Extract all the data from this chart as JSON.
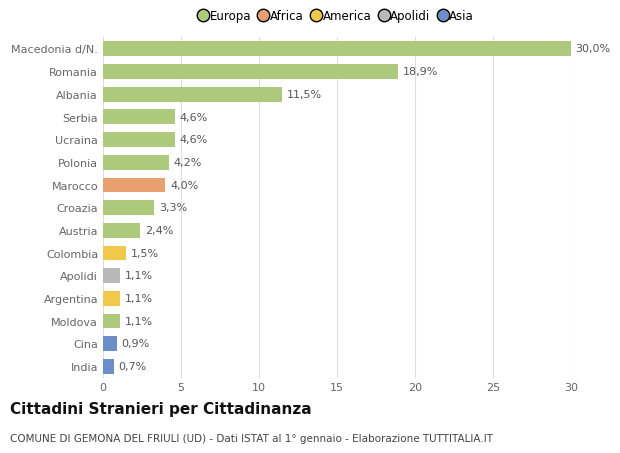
{
  "categories": [
    "Macedonia d/N.",
    "Romania",
    "Albania",
    "Serbia",
    "Ucraina",
    "Polonia",
    "Marocco",
    "Croazia",
    "Austria",
    "Colombia",
    "Apolidi",
    "Argentina",
    "Moldova",
    "Cina",
    "India"
  ],
  "values": [
    30.0,
    18.9,
    11.5,
    4.6,
    4.6,
    4.2,
    4.0,
    3.3,
    2.4,
    1.5,
    1.1,
    1.1,
    1.1,
    0.9,
    0.7
  ],
  "labels": [
    "30,0%",
    "18,9%",
    "11,5%",
    "4,6%",
    "4,6%",
    "4,2%",
    "4,0%",
    "3,3%",
    "2,4%",
    "1,5%",
    "1,1%",
    "1,1%",
    "1,1%",
    "0,9%",
    "0,7%"
  ],
  "bar_colors": [
    "#adc97c",
    "#adc97c",
    "#adc97c",
    "#adc97c",
    "#adc97c",
    "#adc97c",
    "#e8a070",
    "#adc97c",
    "#adc97c",
    "#f0c84a",
    "#b8b8b8",
    "#f0c84a",
    "#adc97c",
    "#6b8ec7",
    "#6b8ec7"
  ],
  "legend_labels": [
    "Europa",
    "Africa",
    "America",
    "Apolidi",
    "Asia"
  ],
  "legend_colors": [
    "#adc97c",
    "#e8a070",
    "#f0c84a",
    "#b8b8b8",
    "#6b8ec7"
  ],
  "title": "Cittadini Stranieri per Cittadinanza",
  "subtitle": "COMUNE DI GEMONA DEL FRIULI (UD) - Dati ISTAT al 1° gennaio - Elaborazione TUTTITALIA.IT",
  "xlim": [
    0,
    30
  ],
  "xticks": [
    0,
    5,
    10,
    15,
    20,
    25,
    30
  ],
  "background_color": "#ffffff",
  "grid_color": "#dddddd",
  "bar_height": 0.65,
  "title_fontsize": 11,
  "subtitle_fontsize": 7.5,
  "tick_fontsize": 8,
  "label_fontsize": 8
}
